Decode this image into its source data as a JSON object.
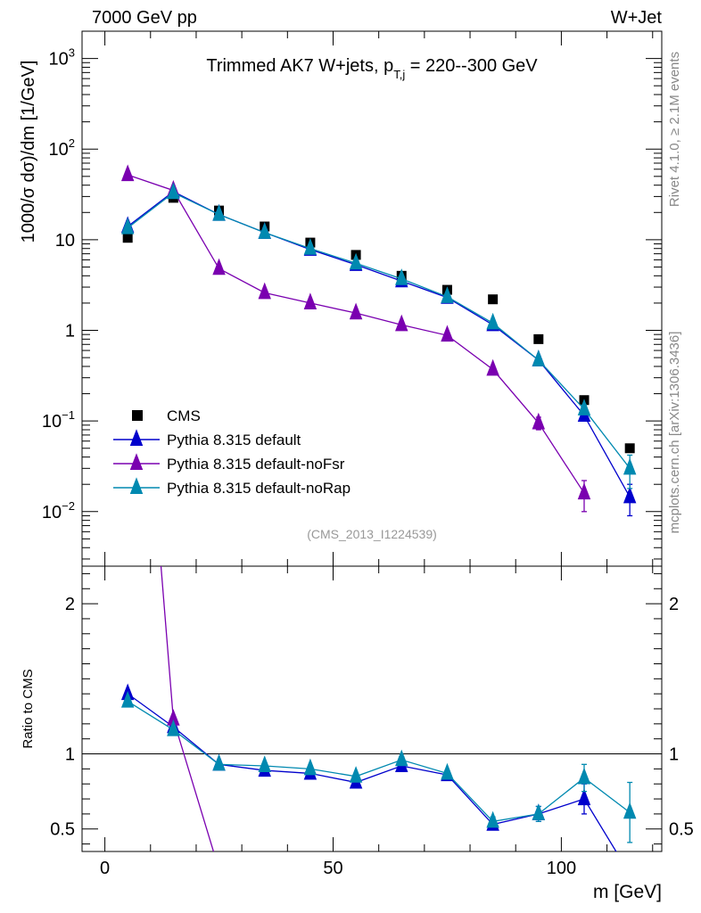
{
  "header": {
    "left": "7000 GeV pp",
    "right": "W+Jet"
  },
  "side": {
    "rivet": "Rivet 4.1.0, ≥ 2.1M events",
    "mcplots": "mcplots.cern.ch [arXiv:1306.3436]"
  },
  "colors": {
    "cms": "#000000",
    "default": "#0000cc",
    "noFsr": "#7a00b0",
    "noRap": "#0089b0"
  },
  "chart_data": {
    "type": "line",
    "title_main": "Trimmed AK7 W+jets, p",
    "title_sub": "T,j",
    "title_rest": " = 220--300 GeV",
    "analysis": "(CMS_2013_I1224539)",
    "xlabel": "m [GeV]",
    "ylabel_main": "1000/σ  dσ)/dm [1/GeV]",
    "ylabel_ratio": "Ratio to CMS",
    "xlim": [
      -5,
      122
    ],
    "ylim_main": [
      0.0025,
      2000
    ],
    "ylim_ratio": [
      0.35,
      2.25
    ],
    "x_ticks": [
      0,
      50,
      100
    ],
    "y_ticks_main": [
      {
        "v": 0.01,
        "b": "10",
        "e": "−2"
      },
      {
        "v": 0.1,
        "b": "10",
        "e": "−1"
      },
      {
        "v": 1,
        "b": "1",
        "e": ""
      },
      {
        "v": 10,
        "b": "10",
        "e": ""
      },
      {
        "v": 100,
        "b": "10",
        "e": "2"
      },
      {
        "v": 1000,
        "b": "10",
        "e": "3"
      }
    ],
    "y_ticks_ratio": [
      0.5,
      1,
      2
    ],
    "x": [
      5,
      15,
      25,
      35,
      45,
      55,
      65,
      75,
      85,
      95,
      105,
      115
    ],
    "series": [
      {
        "name": "CMS",
        "marker": "square",
        "values": [
          10.5,
          29,
          21,
          14,
          9.3,
          6.8,
          4.0,
          2.8,
          2.2,
          0.8,
          0.17,
          0.05
        ],
        "errors": [
          0,
          0,
          0,
          0,
          0,
          0,
          0,
          0,
          0,
          0,
          0,
          0
        ]
      },
      {
        "name": "Pythia 8.315 default",
        "marker": "triangle",
        "values": [
          14,
          34,
          19,
          12,
          7.8,
          5.3,
          3.5,
          2.3,
          1.15,
          0.47,
          0.115,
          0.0145
        ],
        "errors": [
          0,
          0,
          0,
          0,
          0,
          0,
          0,
          0,
          0,
          0.02,
          0.015,
          0.0055
        ],
        "ratio": [
          1.4,
          1.18,
          0.93,
          0.89,
          0.87,
          0.81,
          0.92,
          0.86,
          0.53,
          0.6,
          0.7,
          0.2
        ],
        "ratio_errors": [
          0,
          0,
          0,
          0,
          0,
          0,
          0.02,
          0.02,
          0.03,
          0.05,
          0.1,
          0
        ]
      },
      {
        "name": "Pythia 8.315 default-noFsr",
        "marker": "triangle",
        "values": [
          52,
          35,
          4.8,
          2.6,
          2.0,
          1.55,
          1.15,
          0.88,
          0.37,
          0.095,
          0.016,
          null
        ],
        "errors": [
          0,
          0,
          0,
          0,
          0,
          0,
          0,
          0,
          0,
          0.015,
          0.006,
          0
        ],
        "ratio": [
          5.0,
          1.23,
          0.23,
          null,
          null,
          null,
          null,
          null,
          null,
          null,
          null,
          null
        ],
        "ratio_errors": [
          0,
          0,
          0,
          0,
          0,
          0,
          0,
          0,
          0,
          0,
          0,
          0
        ]
      },
      {
        "name": "Pythia 8.315 default-noRap",
        "marker": "triangle",
        "values": [
          13.5,
          33,
          19,
          12,
          8.0,
          5.5,
          3.7,
          2.35,
          1.2,
          0.47,
          0.135,
          0.03
        ],
        "errors": [
          0,
          0,
          0,
          0,
          0,
          0,
          0,
          0,
          0,
          0.02,
          0.015,
          0.012
        ],
        "ratio": [
          1.35,
          1.16,
          0.93,
          0.92,
          0.9,
          0.85,
          0.96,
          0.87,
          0.55,
          0.6,
          0.84,
          0.61
        ],
        "ratio_errors": [
          0,
          0,
          0,
          0,
          0,
          0,
          0.02,
          0.02,
          0.03,
          0.05,
          0.09,
          0.2
        ]
      }
    ]
  }
}
